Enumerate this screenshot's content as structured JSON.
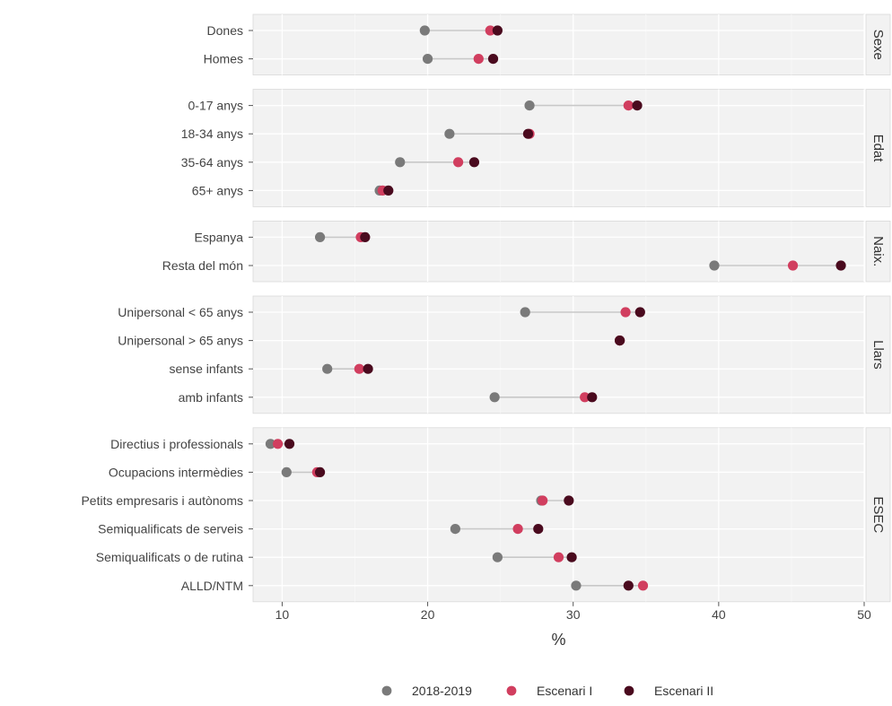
{
  "chart_data": {
    "type": "scatter",
    "subtype": "dumbbell",
    "xlabel": "%",
    "ylabel": "",
    "xlim": [
      8,
      50
    ],
    "xticks": [
      10,
      20,
      30,
      40,
      50
    ],
    "grid": true,
    "legend_position": "bottom",
    "colors": {
      "panel_bg": "#f2f2f2",
      "grid": "#ffffff",
      "strip_bg": "#f2f2f2",
      "connector": "#c8c8c8"
    },
    "series": [
      {
        "name": "2018-2019",
        "color": "#7a7a7a"
      },
      {
        "name": "Escenari I",
        "color": "#d13e5f"
      },
      {
        "name": "Escenari II",
        "color": "#4a0a1e"
      }
    ],
    "panels": [
      {
        "strip": "Sexe",
        "rows": [
          {
            "label": "Dones",
            "values": [
              19.8,
              24.3,
              24.8
            ]
          },
          {
            "label": "Homes",
            "values": [
              20.0,
              23.5,
              24.5
            ]
          }
        ]
      },
      {
        "strip": "Edat",
        "rows": [
          {
            "label": "0-17 anys",
            "values": [
              27.0,
              33.8,
              34.4
            ]
          },
          {
            "label": "18-34 anys",
            "values": [
              21.5,
              27.0,
              26.9
            ]
          },
          {
            "label": "35-64 anys",
            "values": [
              18.1,
              22.1,
              23.2
            ]
          },
          {
            "label": "65+ anys",
            "values": [
              16.7,
              16.9,
              17.3
            ]
          }
        ]
      },
      {
        "strip": "Naix.",
        "rows": [
          {
            "label": "Espanya",
            "values": [
              12.6,
              15.4,
              15.7
            ]
          },
          {
            "label": "Resta del món",
            "values": [
              39.7,
              45.1,
              48.4
            ]
          }
        ]
      },
      {
        "strip": "Llars",
        "rows": [
          {
            "label": "Unipersonal < 65 anys",
            "values": [
              26.7,
              33.6,
              34.6
            ]
          },
          {
            "label": "Unipersonal > 65 anys",
            "values": [
              33.2,
              33.2,
              33.2
            ]
          },
          {
            "label": "sense infants",
            "values": [
              13.1,
              15.3,
              15.9
            ]
          },
          {
            "label": "amb infants",
            "values": [
              24.6,
              30.8,
              31.3
            ]
          }
        ]
      },
      {
        "strip": "ESEC",
        "rows": [
          {
            "label": "Directius i professionals",
            "values": [
              9.2,
              9.7,
              10.5
            ]
          },
          {
            "label": "Ocupacions intermèdies",
            "values": [
              10.3,
              12.4,
              12.6
            ]
          },
          {
            "label": "Petits empresaris i autònoms",
            "values": [
              27.8,
              27.9,
              29.7
            ]
          },
          {
            "label": "Semiqualificats de serveis",
            "values": [
              21.9,
              26.2,
              27.6
            ]
          },
          {
            "label": "Semiqualificats o de rutina",
            "values": [
              24.8,
              29.0,
              29.9
            ]
          },
          {
            "label": "ALLD/NTM",
            "values": [
              30.2,
              34.8,
              33.8
            ]
          }
        ]
      }
    ]
  }
}
